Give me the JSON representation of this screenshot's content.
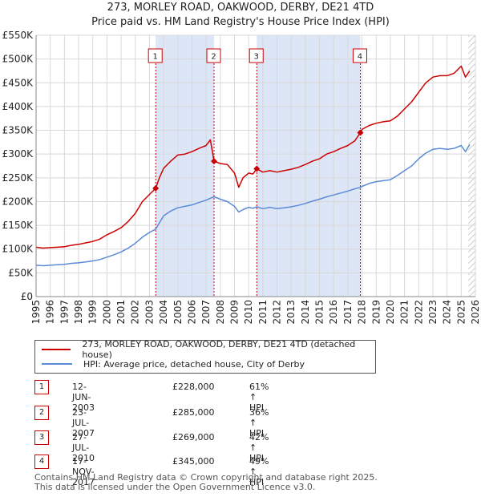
{
  "title_line1": "273, MORLEY ROAD, OAKWOOD, DERBY, DE21 4TD",
  "title_line2": "Price paid vs. HM Land Registry's House Price Index (HPI)",
  "colors": {
    "property": "#cc0000",
    "hpi": "#5b8bd6",
    "shade": "#dde6f7",
    "grid": "#d8d8d8"
  },
  "chart_data": {
    "type": "line",
    "title": "273, MORLEY ROAD, OAKWOOD, DERBY, DE21 4TD",
    "subtitle": "Price paid vs. HM Land Registry's House Price Index (HPI)",
    "xlim": [
      1995,
      2026
    ],
    "ylim": [
      0,
      550000
    ],
    "y_ticks": [
      0,
      50000,
      100000,
      150000,
      200000,
      250000,
      300000,
      350000,
      400000,
      450000,
      500000,
      550000
    ],
    "y_tick_labels": [
      "£0",
      "£50K",
      "£100K",
      "£150K",
      "£200K",
      "£250K",
      "£300K",
      "£350K",
      "£400K",
      "£450K",
      "£500K",
      "£550K"
    ],
    "x_ticks": [
      1995,
      1996,
      1997,
      1998,
      1999,
      2000,
      2001,
      2002,
      2003,
      2004,
      2005,
      2006,
      2007,
      2008,
      2009,
      2010,
      2011,
      2012,
      2013,
      2014,
      2015,
      2016,
      2017,
      2018,
      2019,
      2020,
      2021,
      2022,
      2023,
      2024,
      2025,
      2026
    ],
    "x_tick_labels": [
      "1995",
      "1996",
      "1997",
      "1998",
      "1999",
      "2000",
      "2001",
      "2002",
      "2003",
      "2004",
      "2005",
      "2006",
      "2007",
      "2008",
      "2009",
      "2010",
      "2011",
      "2012",
      "2013",
      "2014",
      "2015",
      "2016",
      "2017",
      "2018",
      "2019",
      "2020",
      "2021",
      "2022",
      "2023",
      "2024",
      "2025",
      "2026"
    ],
    "grid": true,
    "shaded_periods": [
      [
        2003.44,
        2007.56
      ],
      [
        2010.57,
        2017.88
      ]
    ],
    "hatched_from": 2025.5,
    "series": [
      {
        "name": "273, MORLEY ROAD, OAKWOOD, DERBY, DE21 4TD (detached house)",
        "x": [
          1995.0,
          1995.5,
          1996.0,
          1996.5,
          1997.0,
          1997.5,
          1998.0,
          1998.5,
          1999.0,
          1999.5,
          2000.0,
          2000.5,
          2001.0,
          2001.5,
          2002.0,
          2002.5,
          2003.0,
          2003.44,
          2003.7,
          2004.0,
          2004.5,
          2005.0,
          2005.5,
          2006.0,
          2006.5,
          2007.0,
          2007.3,
          2007.56,
          2008.0,
          2008.5,
          2009.0,
          2009.3,
          2009.6,
          2010.0,
          2010.3,
          2010.57,
          2011.0,
          2011.5,
          2012.0,
          2012.5,
          2013.0,
          2013.5,
          2014.0,
          2014.5,
          2015.0,
          2015.5,
          2016.0,
          2016.5,
          2017.0,
          2017.5,
          2017.88,
          2018.0,
          2018.5,
          2019.0,
          2019.5,
          2020.0,
          2020.5,
          2021.0,
          2021.5,
          2022.0,
          2022.5,
          2023.0,
          2023.5,
          2024.0,
          2024.5,
          2025.0,
          2025.3,
          2025.6
        ],
        "values": [
          104000,
          102000,
          103000,
          104000,
          105000,
          108000,
          110000,
          113000,
          116000,
          121000,
          130000,
          137000,
          145000,
          158000,
          175000,
          200000,
          215000,
          228000,
          250000,
          270000,
          285000,
          298000,
          300000,
          305000,
          312000,
          318000,
          330000,
          285000,
          280000,
          278000,
          260000,
          230000,
          250000,
          260000,
          258000,
          269000,
          262000,
          265000,
          262000,
          265000,
          268000,
          272000,
          278000,
          285000,
          290000,
          300000,
          305000,
          312000,
          318000,
          328000,
          345000,
          352000,
          360000,
          365000,
          368000,
          370000,
          380000,
          395000,
          410000,
          430000,
          450000,
          462000,
          465000,
          465000,
          470000,
          485000,
          462000,
          475000
        ]
      },
      {
        "name": "HPI: Average price, detached house, City of Derby",
        "x": [
          1995.0,
          1995.5,
          1996.0,
          1996.5,
          1997.0,
          1997.5,
          1998.0,
          1998.5,
          1999.0,
          1999.5,
          2000.0,
          2000.5,
          2001.0,
          2001.5,
          2002.0,
          2002.5,
          2003.0,
          2003.44,
          2003.7,
          2004.0,
          2004.5,
          2005.0,
          2005.5,
          2006.0,
          2006.5,
          2007.0,
          2007.3,
          2007.56,
          2008.0,
          2008.5,
          2009.0,
          2009.3,
          2009.6,
          2010.0,
          2010.3,
          2010.57,
          2011.0,
          2011.5,
          2012.0,
          2012.5,
          2013.0,
          2013.5,
          2014.0,
          2014.5,
          2015.0,
          2015.5,
          2016.0,
          2016.5,
          2017.0,
          2017.5,
          2017.88,
          2018.0,
          2018.5,
          2019.0,
          2019.5,
          2020.0,
          2020.5,
          2021.0,
          2021.5,
          2022.0,
          2022.5,
          2023.0,
          2023.5,
          2024.0,
          2024.5,
          2025.0,
          2025.3,
          2025.6
        ],
        "values": [
          66000,
          65000,
          66000,
          67000,
          68000,
          70000,
          71000,
          73000,
          75000,
          78000,
          83000,
          88000,
          94000,
          102000,
          112000,
          125000,
          135000,
          142000,
          155000,
          170000,
          180000,
          187000,
          190000,
          193000,
          198000,
          203000,
          207000,
          210000,
          205000,
          200000,
          190000,
          178000,
          183000,
          188000,
          186000,
          189000,
          185000,
          188000,
          185000,
          187000,
          189000,
          192000,
          196000,
          201000,
          205000,
          210000,
          214000,
          218000,
          222000,
          227000,
          230000,
          232000,
          238000,
          242000,
          244000,
          246000,
          255000,
          265000,
          275000,
          290000,
          302000,
          310000,
          312000,
          310000,
          312000,
          318000,
          305000,
          320000
        ]
      }
    ],
    "sale_markers": [
      {
        "label": "1",
        "x": 2003.44,
        "value": 228000
      },
      {
        "label": "2",
        "x": 2007.56,
        "value": 285000
      },
      {
        "label": "3",
        "x": 2010.57,
        "value": 269000
      },
      {
        "label": "4",
        "x": 2017.88,
        "value": 345000
      }
    ]
  },
  "legend": {
    "property": "273, MORLEY ROAD, OAKWOOD, DERBY, DE21 4TD (detached house)",
    "hpi": "HPI: Average price, detached house, City of Derby"
  },
  "transactions": [
    {
      "num": "1",
      "date": "12-JUN-2003",
      "price": "£228,000",
      "hpi": "61% ↑ HPI"
    },
    {
      "num": "2",
      "date": "23-JUL-2007",
      "price": "£285,000",
      "hpi": "36% ↑ HPI"
    },
    {
      "num": "3",
      "date": "27-JUL-2010",
      "price": "£269,000",
      "hpi": "42% ↑ HPI"
    },
    {
      "num": "4",
      "date": "17-NOV-2017",
      "price": "£345,000",
      "hpi": "49% ↑ HPI"
    }
  ],
  "footer": {
    "line1": "Contains HM Land Registry data © Crown copyright and database right 2025.",
    "line2": "This data is licensed under the Open Government Licence v3.0."
  }
}
